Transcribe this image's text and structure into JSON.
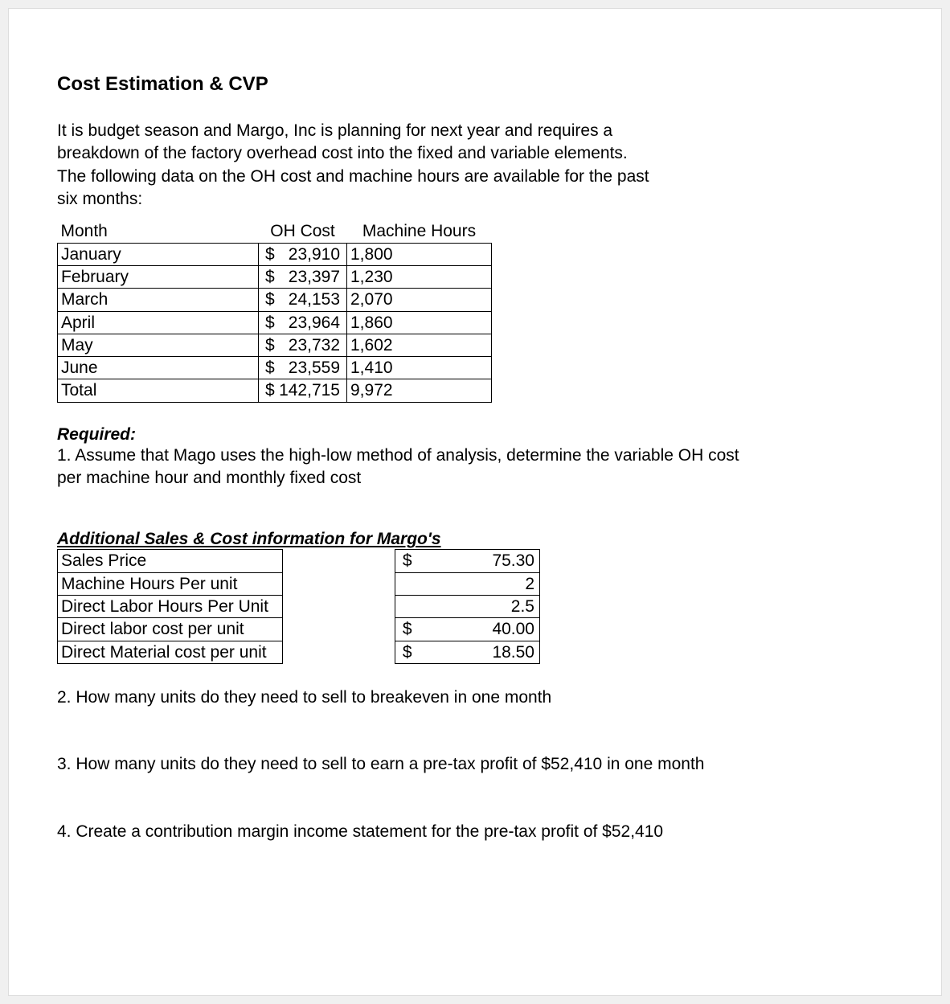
{
  "heading": "Cost Estimation & CVP",
  "intro": "It is budget season and Margo, Inc is planning for next year and requires a breakdown of the factory overhead cost into the fixed and variable elements.  The following data on the OH cost and machine hours are available for the past six months:",
  "table1": {
    "headers": {
      "month": "Month",
      "oh": "OH Cost",
      "mh": "Machine Hours"
    },
    "rows": [
      {
        "month": "January",
        "sym": "$",
        "oh": "23,910",
        "mh": "1,800"
      },
      {
        "month": "February",
        "sym": "$",
        "oh": "23,397",
        "mh": "1,230"
      },
      {
        "month": "March",
        "sym": "$",
        "oh": "24,153",
        "mh": "2,070"
      },
      {
        "month": "April",
        "sym": "$",
        "oh": "23,964",
        "mh": "1,860"
      },
      {
        "month": "May",
        "sym": "$",
        "oh": "23,732",
        "mh": "1,602"
      },
      {
        "month": "June",
        "sym": "$",
        "oh": "23,559",
        "mh": "1,410"
      },
      {
        "month": "Total",
        "sym": "$",
        "oh": "142,715",
        "mh": "9,972"
      }
    ]
  },
  "required_label": "Required:",
  "req1": "1. Assume that Mago uses the high-low method of analysis, determine the variable OH cost per machine hour and monthly fixed cost",
  "section2_title": "Additional Sales & Cost information for Margo's",
  "table2": {
    "rows": [
      {
        "label": "Sales Price",
        "sym": "$",
        "val": "75.30"
      },
      {
        "label": "Machine Hours Per unit",
        "sym": "",
        "val": "2"
      },
      {
        "label": "Direct Labor Hours Per Unit",
        "sym": "",
        "val": "2.5"
      },
      {
        "label": "Direct labor cost per unit",
        "sym": "$",
        "val": "40.00"
      },
      {
        "label": "Direct Material cost per unit",
        "sym": "$",
        "val": "18.50"
      }
    ]
  },
  "q2": "2. How many units do they need to sell to breakeven in one month",
  "q3": "3. How many units do they need to sell to earn a pre-tax profit of $52,410 in one month",
  "q4": "4. Create a contribution margin income statement for the pre-tax profit of $52,410"
}
